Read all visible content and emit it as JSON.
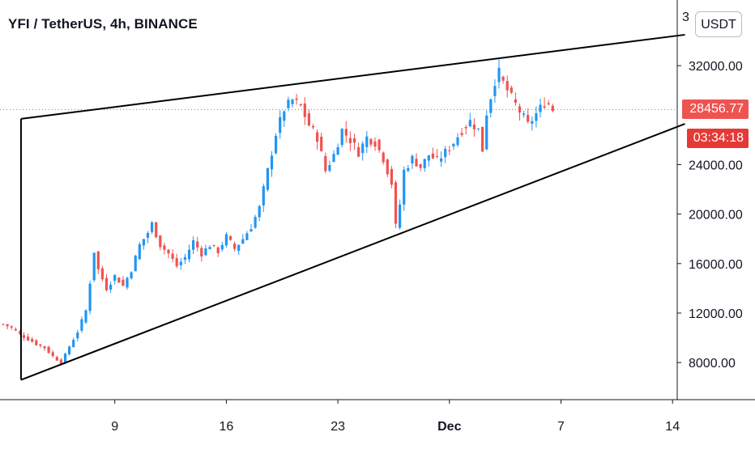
{
  "header": {
    "title": "YFI / TetherUS, 4h, BINANCE",
    "unit_button": "USDT"
  },
  "colors": {
    "up": "#2196f3",
    "down": "#ef5350",
    "last_price_bg": "#ef5350",
    "countdown_bg": "#e53935",
    "axis_line": "#131722",
    "trend_line": "#000000"
  },
  "badges": {
    "last_price": "28456.77",
    "countdown": "03:34:18",
    "top_partial": "3"
  },
  "chart_data": {
    "type": "candlestick",
    "symbol": "YFI / TetherUS",
    "interval": "4h",
    "exchange": "BINANCE",
    "y_ticks": [
      "32000.00",
      "24000.00",
      "20000.00",
      "16000.00",
      "12000.00",
      "8000.00"
    ],
    "x_ticks": [
      "9",
      "16",
      "23",
      "Dec",
      "7",
      "14"
    ],
    "ylim": [
      5000,
      36000
    ],
    "last_price": 28456.77,
    "price_path": [
      [
        0,
        11100
      ],
      [
        2,
        10800
      ],
      [
        4,
        10300
      ],
      [
        6,
        9900
      ],
      [
        8,
        9500
      ],
      [
        10,
        9200
      ],
      [
        12,
        8500
      ],
      [
        14,
        8000
      ],
      [
        15,
        8600
      ],
      [
        16,
        9300
      ],
      [
        18,
        10500
      ],
      [
        20,
        12200
      ],
      [
        21,
        14500
      ],
      [
        22,
        17000
      ],
      [
        23,
        15500
      ],
      [
        25,
        14000
      ],
      [
        27,
        15000
      ],
      [
        29,
        14200
      ],
      [
        31,
        15500
      ],
      [
        33,
        17500
      ],
      [
        35,
        18500
      ],
      [
        36,
        19200
      ],
      [
        38,
        17500
      ],
      [
        40,
        16800
      ],
      [
        42,
        15800
      ],
      [
        44,
        16500
      ],
      [
        46,
        17800
      ],
      [
        48,
        16800
      ],
      [
        50,
        17500
      ],
      [
        52,
        17000
      ],
      [
        54,
        18200
      ],
      [
        56,
        17200
      ],
      [
        58,
        18000
      ],
      [
        60,
        19000
      ],
      [
        62,
        20500
      ],
      [
        64,
        23500
      ],
      [
        66,
        26500
      ],
      [
        68,
        28500
      ],
      [
        70,
        29200
      ],
      [
        72,
        28700
      ],
      [
        74,
        27200
      ],
      [
        76,
        26200
      ],
      [
        78,
        23500
      ],
      [
        80,
        24800
      ],
      [
        82,
        26800
      ],
      [
        84,
        26000
      ],
      [
        86,
        25000
      ],
      [
        88,
        26200
      ],
      [
        90,
        25800
      ],
      [
        92,
        24500
      ],
      [
        94,
        22500
      ],
      [
        95,
        19000
      ],
      [
        96,
        20800
      ],
      [
        97,
        23500
      ],
      [
        99,
        24500
      ],
      [
        101,
        23800
      ],
      [
        103,
        24800
      ],
      [
        105,
        24300
      ],
      [
        107,
        25000
      ],
      [
        109,
        25800
      ],
      [
        111,
        26800
      ],
      [
        113,
        27500
      ],
      [
        115,
        26800
      ],
      [
        116,
        25200
      ],
      [
        117,
        28200
      ],
      [
        119,
        30800
      ],
      [
        120,
        31400
      ],
      [
        121,
        30600
      ],
      [
        123,
        29400
      ],
      [
        125,
        28300
      ],
      [
        127,
        27200
      ],
      [
        129,
        28100
      ],
      [
        131,
        29000
      ],
      [
        132,
        28900
      ],
      [
        133,
        28456.77
      ]
    ],
    "trend_lines": [
      {
        "name": "upper",
        "from": [
          "x",
          4.3,
          27700
        ],
        "to": [
          "x",
          165,
          34500
        ]
      },
      {
        "name": "lower",
        "from": [
          "x",
          4.3,
          6600
        ],
        "to": [
          "x",
          165,
          27300
        ]
      },
      {
        "name": "vertical",
        "from": [
          "x",
          4.3,
          6600
        ],
        "to": [
          "x",
          4.3,
          27700
        ]
      }
    ],
    "x_tick_positions": [
      27,
      54,
      81,
      108,
      135,
      162
    ]
  }
}
